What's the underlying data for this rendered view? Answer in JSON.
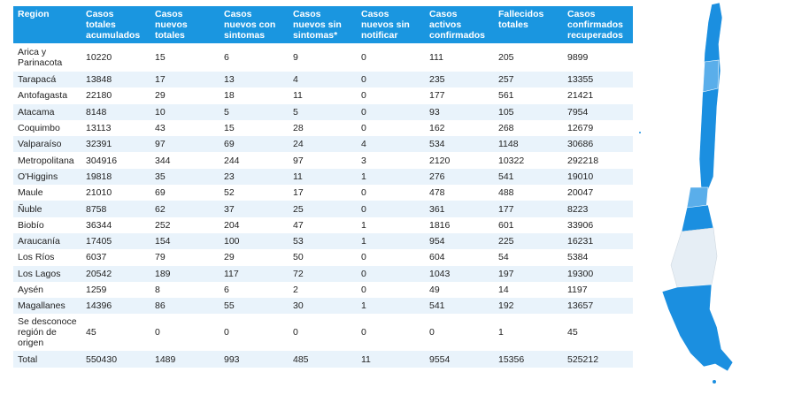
{
  "table": {
    "columns": [
      "Region",
      "Casos totales acumulados",
      "Casos nuevos totales",
      "Casos nuevos con sintomas",
      "Casos nuevos sin sintomas*",
      "Casos nuevos sin notificar",
      "Casos activos confirmados",
      "Fallecidos totales",
      "Casos confirmados recuperados"
    ],
    "rows": [
      [
        "Arica y Parinacota",
        "10220",
        "15",
        "6",
        "9",
        "0",
        "111",
        "205",
        "9899"
      ],
      [
        "Tarapacá",
        "13848",
        "17",
        "13",
        "4",
        "0",
        "235",
        "257",
        "13355"
      ],
      [
        "Antofagasta",
        "22180",
        "29",
        "18",
        "11",
        "0",
        "177",
        "561",
        "21421"
      ],
      [
        "Atacama",
        "8148",
        "10",
        "5",
        "5",
        "0",
        "93",
        "105",
        "7954"
      ],
      [
        "Coquimbo",
        "13113",
        "43",
        "15",
        "28",
        "0",
        "162",
        "268",
        "12679"
      ],
      [
        "Valparaíso",
        "32391",
        "97",
        "69",
        "24",
        "4",
        "534",
        "1148",
        "30686"
      ],
      [
        "Metropolitana",
        "304916",
        "344",
        "244",
        "97",
        "3",
        "2120",
        "10322",
        "292218"
      ],
      [
        "O'Higgins",
        "19818",
        "35",
        "23",
        "11",
        "1",
        "276",
        "541",
        "19010"
      ],
      [
        "Maule",
        "21010",
        "69",
        "52",
        "17",
        "0",
        "478",
        "488",
        "20047"
      ],
      [
        "Ñuble",
        "8758",
        "62",
        "37",
        "25",
        "0",
        "361",
        "177",
        "8223"
      ],
      [
        "Biobío",
        "36344",
        "252",
        "204",
        "47",
        "1",
        "1816",
        "601",
        "33906"
      ],
      [
        "Araucanía",
        "17405",
        "154",
        "100",
        "53",
        "1",
        "954",
        "225",
        "16231"
      ],
      [
        "Los Ríos",
        "6037",
        "79",
        "29",
        "50",
        "0",
        "604",
        "54",
        "5384"
      ],
      [
        "Los Lagos",
        "20542",
        "189",
        "117",
        "72",
        "0",
        "1043",
        "197",
        "19300"
      ],
      [
        "Aysén",
        "1259",
        "8",
        "6",
        "2",
        "0",
        "49",
        "14",
        "1197"
      ],
      [
        "Magallanes",
        "14396",
        "86",
        "55",
        "30",
        "1",
        "541",
        "192",
        "13657"
      ],
      [
        "Se desconoce región de origen",
        "45",
        "0",
        "0",
        "0",
        "0",
        "0",
        "1",
        "45"
      ],
      [
        "Total",
        "550430",
        "1489",
        "993",
        "485",
        "11",
        "9554",
        "15356",
        "525212"
      ]
    ]
  }
}
